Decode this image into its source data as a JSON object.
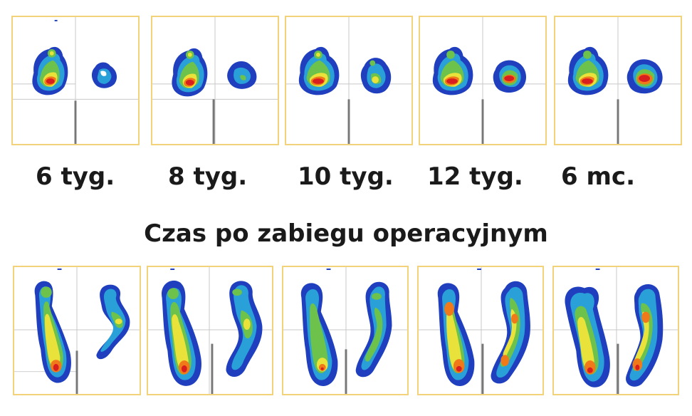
{
  "time_labels": [
    "6 tyg.",
    "8 tyg.",
    "10 tyg.",
    "12 tyg.",
    "6 mc."
  ],
  "caption": "Czas po zabiegu operacyjnym",
  "colors": {
    "panel_border": "#f2d27a",
    "pressure_low": "#1f3fbf",
    "pressure_mid_low": "#2aa0d8",
    "pressure_mid": "#6cc24a",
    "pressure_mid_high": "#e8e23a",
    "pressure_high": "#f07a1a",
    "pressure_peak": "#d81e1e"
  },
  "panel_sets": [
    {
      "name": "static-standing",
      "panels": 5
    },
    {
      "name": "dynamic-gait",
      "panels": 5
    }
  ]
}
